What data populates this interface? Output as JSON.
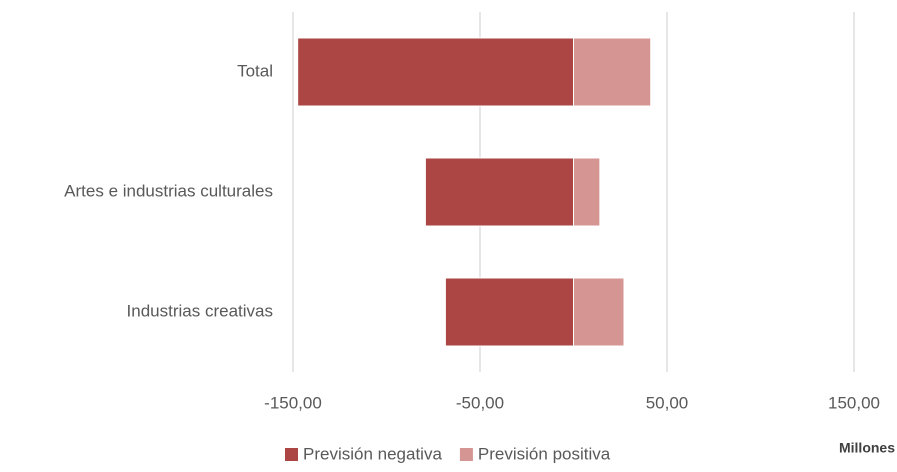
{
  "chart_data": {
    "type": "hbar",
    "categories": [
      "Total",
      "Artes e industrias culturales",
      "Industrias creativas"
    ],
    "series": [
      {
        "name": "Previsión negativa",
        "color": "#ab4644",
        "values": [
          -147.5,
          -79.2,
          -68.5
        ]
      },
      {
        "name": "Previsión positiva",
        "color": "#d49593",
        "values": [
          41.3,
          14.1,
          27
        ]
      }
    ],
    "xlim": [
      -150,
      150
    ],
    "xticks": [
      {
        "value": -150,
        "label": "-150,00"
      },
      {
        "value": -50,
        "label": "-50,00"
      },
      {
        "value": 50,
        "label": "50,00"
      },
      {
        "value": 150,
        "label": "150,00"
      }
    ],
    "x_unit_label": "Millones",
    "grid": true,
    "legend": "bottom"
  }
}
